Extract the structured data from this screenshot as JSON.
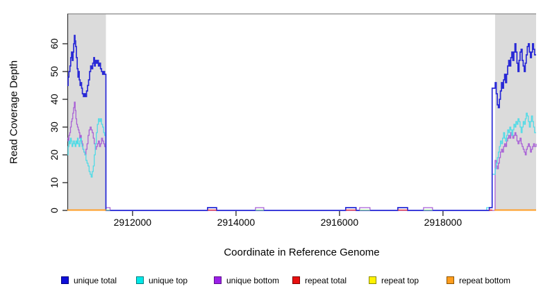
{
  "chart_data": {
    "type": "line",
    "title": "",
    "xlabel": "Coordinate in Reference Genome",
    "ylabel": "Read Coverage Depth",
    "xlim": [
      2910740,
      2919800
    ],
    "ylim": [
      0,
      70.75
    ],
    "xticks": [
      2912000,
      2914000,
      2916000,
      2918000
    ],
    "yticks": [
      0,
      10,
      20,
      30,
      40,
      50,
      60
    ],
    "grid": false,
    "legend_position": "bottom",
    "shade_color": "#dbdbdb",
    "top_border_color": "#9a9a9a",
    "shaded_regions": [
      {
        "x0": 2910740,
        "x1": 2911485
      },
      {
        "x0": 2919007,
        "x1": 2919800
      }
    ],
    "series": [
      {
        "name": "unique bottom",
        "color": "#a85fd6",
        "lw": 1.3,
        "points": [
          [
            2910740,
            26
          ],
          [
            2910755,
            25
          ],
          [
            2910770,
            27
          ],
          [
            2910785,
            28
          ],
          [
            2910800,
            30
          ],
          [
            2910815,
            32
          ],
          [
            2910830,
            33
          ],
          [
            2910845,
            35
          ],
          [
            2910860,
            37
          ],
          [
            2910875,
            39
          ],
          [
            2910890,
            36
          ],
          [
            2910905,
            33
          ],
          [
            2910920,
            31
          ],
          [
            2910935,
            30
          ],
          [
            2910950,
            29
          ],
          [
            2910965,
            28
          ],
          [
            2910980,
            26
          ],
          [
            2910995,
            27
          ],
          [
            2911010,
            25
          ],
          [
            2911025,
            24
          ],
          [
            2911040,
            22
          ],
          [
            2911060,
            21
          ],
          [
            2911080,
            20
          ],
          [
            2911100,
            22
          ],
          [
            2911120,
            24
          ],
          [
            2911140,
            27
          ],
          [
            2911160,
            29
          ],
          [
            2911180,
            30
          ],
          [
            2911200,
            29
          ],
          [
            2911220,
            28
          ],
          [
            2911240,
            26
          ],
          [
            2911260,
            24
          ],
          [
            2911280,
            22
          ],
          [
            2911300,
            23
          ],
          [
            2911320,
            24
          ],
          [
            2911340,
            25
          ],
          [
            2911360,
            23
          ],
          [
            2911380,
            24
          ],
          [
            2911400,
            26
          ],
          [
            2911420,
            25
          ],
          [
            2911440,
            24
          ],
          [
            2911460,
            23
          ],
          [
            2911485,
            1
          ],
          [
            2911565,
            0
          ],
          [
            2914376,
            1
          ],
          [
            2914537,
            0
          ],
          [
            2916389,
            1
          ],
          [
            2916590,
            0
          ],
          [
            2917624,
            1
          ],
          [
            2917798,
            0
          ],
          [
            2919007,
            18
          ],
          [
            2919030,
            16
          ],
          [
            2919050,
            15
          ],
          [
            2919070,
            17
          ],
          [
            2919090,
            19
          ],
          [
            2919110,
            21
          ],
          [
            2919130,
            22
          ],
          [
            2919150,
            21
          ],
          [
            2919170,
            23
          ],
          [
            2919190,
            24
          ],
          [
            2919210,
            23
          ],
          [
            2919230,
            25
          ],
          [
            2919250,
            26
          ],
          [
            2919270,
            27
          ],
          [
            2919290,
            26
          ],
          [
            2919310,
            28
          ],
          [
            2919330,
            27
          ],
          [
            2919350,
            26
          ],
          [
            2919370,
            27
          ],
          [
            2919390,
            28
          ],
          [
            2919410,
            27
          ],
          [
            2919430,
            25
          ],
          [
            2919450,
            24
          ],
          [
            2919470,
            25
          ],
          [
            2919490,
            26
          ],
          [
            2919510,
            24
          ],
          [
            2919530,
            23
          ],
          [
            2919550,
            22
          ],
          [
            2919570,
            21
          ],
          [
            2919590,
            20
          ],
          [
            2919610,
            22
          ],
          [
            2919630,
            23
          ],
          [
            2919650,
            24
          ],
          [
            2919670,
            23
          ],
          [
            2919690,
            21
          ],
          [
            2919710,
            22
          ],
          [
            2919730,
            23
          ],
          [
            2919750,
            24
          ],
          [
            2919770,
            23
          ],
          [
            2919800,
            24
          ]
        ]
      },
      {
        "name": "unique top",
        "color": "#4fdbe6",
        "lw": 1.3,
        "points": [
          [
            2910740,
            20
          ],
          [
            2910755,
            23
          ],
          [
            2910770,
            25
          ],
          [
            2910785,
            24
          ],
          [
            2910800,
            26
          ],
          [
            2910815,
            25
          ],
          [
            2910830,
            23
          ],
          [
            2910845,
            24
          ],
          [
            2910860,
            25
          ],
          [
            2910875,
            24
          ],
          [
            2910890,
            23
          ],
          [
            2910905,
            25
          ],
          [
            2910920,
            24
          ],
          [
            2910935,
            26
          ],
          [
            2910950,
            24
          ],
          [
            2910965,
            23
          ],
          [
            2910980,
            25
          ],
          [
            2910995,
            26
          ],
          [
            2911010,
            24
          ],
          [
            2911025,
            23
          ],
          [
            2911040,
            22
          ],
          [
            2911060,
            21
          ],
          [
            2911080,
            20
          ],
          [
            2911100,
            18
          ],
          [
            2911120,
            17
          ],
          [
            2911140,
            16
          ],
          [
            2911160,
            14
          ],
          [
            2911180,
            13
          ],
          [
            2911200,
            12
          ],
          [
            2911220,
            14
          ],
          [
            2911240,
            16
          ],
          [
            2911260,
            20
          ],
          [
            2911280,
            24
          ],
          [
            2911300,
            28
          ],
          [
            2911320,
            31
          ],
          [
            2911340,
            33
          ],
          [
            2911360,
            32
          ],
          [
            2911380,
            33
          ],
          [
            2911400,
            31
          ],
          [
            2911420,
            30
          ],
          [
            2911440,
            28
          ],
          [
            2911460,
            27
          ],
          [
            2911485,
            0
          ],
          [
            2913450,
            1
          ],
          [
            2913625,
            0
          ],
          [
            2916120,
            1
          ],
          [
            2916320,
            0
          ],
          [
            2917127,
            1
          ],
          [
            2917315,
            0
          ],
          [
            2918845,
            1
          ],
          [
            2918950,
            13
          ],
          [
            2919010,
            15
          ],
          [
            2919030,
            17
          ],
          [
            2919050,
            19
          ],
          [
            2919070,
            21
          ],
          [
            2919090,
            23
          ],
          [
            2919110,
            25
          ],
          [
            2919130,
            24
          ],
          [
            2919150,
            26
          ],
          [
            2919170,
            28
          ],
          [
            2919190,
            26
          ],
          [
            2919210,
            25
          ],
          [
            2919230,
            27
          ],
          [
            2919250,
            29
          ],
          [
            2919270,
            28
          ],
          [
            2919290,
            30
          ],
          [
            2919310,
            29
          ],
          [
            2919330,
            27
          ],
          [
            2919350,
            29
          ],
          [
            2919370,
            31
          ],
          [
            2919390,
            30
          ],
          [
            2919410,
            32
          ],
          [
            2919430,
            31
          ],
          [
            2919450,
            33
          ],
          [
            2919470,
            32
          ],
          [
            2919490,
            30
          ],
          [
            2919510,
            28
          ],
          [
            2919530,
            30
          ],
          [
            2919550,
            32
          ],
          [
            2919570,
            31
          ],
          [
            2919590,
            33
          ],
          [
            2919610,
            35
          ],
          [
            2919630,
            34
          ],
          [
            2919650,
            32
          ],
          [
            2919670,
            30
          ],
          [
            2919690,
            32
          ],
          [
            2919710,
            34
          ],
          [
            2919730,
            32
          ],
          [
            2919750,
            30
          ],
          [
            2919770,
            28
          ],
          [
            2919800,
            28
          ]
        ]
      },
      {
        "name": "unique total",
        "color": "#2929d6",
        "lw": 1.7,
        "points": [
          [
            2910740,
            45
          ],
          [
            2910755,
            48
          ],
          [
            2910770,
            50
          ],
          [
            2910790,
            52
          ],
          [
            2910805,
            55
          ],
          [
            2910820,
            57
          ],
          [
            2910835,
            54
          ],
          [
            2910850,
            57
          ],
          [
            2910862,
            60
          ],
          [
            2910875,
            63
          ],
          [
            2910888,
            61
          ],
          [
            2910900,
            59
          ],
          [
            2910915,
            55
          ],
          [
            2910930,
            51
          ],
          [
            2910945,
            48
          ],
          [
            2910958,
            50
          ],
          [
            2910970,
            47
          ],
          [
            2910985,
            45
          ],
          [
            2911000,
            46
          ],
          [
            2911015,
            44
          ],
          [
            2911030,
            42
          ],
          [
            2911050,
            41
          ],
          [
            2911070,
            42
          ],
          [
            2911090,
            41
          ],
          [
            2911110,
            43
          ],
          [
            2911130,
            45
          ],
          [
            2911150,
            47
          ],
          [
            2911170,
            50
          ],
          [
            2911190,
            52
          ],
          [
            2911210,
            51
          ],
          [
            2911230,
            53
          ],
          [
            2911250,
            55
          ],
          [
            2911265,
            52
          ],
          [
            2911280,
            54
          ],
          [
            2911300,
            53
          ],
          [
            2911320,
            54
          ],
          [
            2911340,
            52
          ],
          [
            2911360,
            53
          ],
          [
            2911380,
            51
          ],
          [
            2911400,
            50
          ],
          [
            2911420,
            49
          ],
          [
            2911440,
            50
          ],
          [
            2911460,
            49
          ],
          [
            2911485,
            0
          ],
          [
            2913450,
            1
          ],
          [
            2913625,
            0
          ],
          [
            2916120,
            1
          ],
          [
            2916320,
            0
          ],
          [
            2917127,
            1
          ],
          [
            2917315,
            0
          ],
          [
            2918895,
            1
          ],
          [
            2918950,
            44
          ],
          [
            2919010,
            46
          ],
          [
            2919030,
            42
          ],
          [
            2919050,
            38
          ],
          [
            2919070,
            37
          ],
          [
            2919090,
            40
          ],
          [
            2919110,
            43
          ],
          [
            2919130,
            46
          ],
          [
            2919150,
            44
          ],
          [
            2919170,
            47
          ],
          [
            2919190,
            49
          ],
          [
            2919210,
            46
          ],
          [
            2919230,
            49
          ],
          [
            2919250,
            52
          ],
          [
            2919270,
            54
          ],
          [
            2919290,
            52
          ],
          [
            2919310,
            55
          ],
          [
            2919330,
            57
          ],
          [
            2919350,
            54
          ],
          [
            2919370,
            57
          ],
          [
            2919390,
            60
          ],
          [
            2919410,
            57
          ],
          [
            2919430,
            53
          ],
          [
            2919450,
            50
          ],
          [
            2919470,
            54
          ],
          [
            2919490,
            57
          ],
          [
            2919510,
            58
          ],
          [
            2919530,
            54
          ],
          [
            2919550,
            52
          ],
          [
            2919570,
            50
          ],
          [
            2919590,
            53
          ],
          [
            2919610,
            56
          ],
          [
            2919630,
            59
          ],
          [
            2919650,
            60
          ],
          [
            2919670,
            57
          ],
          [
            2919690,
            55
          ],
          [
            2919710,
            57
          ],
          [
            2919730,
            60
          ],
          [
            2919750,
            58
          ],
          [
            2919770,
            56
          ],
          [
            2919800,
            56
          ]
        ]
      },
      {
        "name": "repeat total",
        "color": "#e63232",
        "lw": 1.4,
        "value": 0,
        "zero_segments": [
          [
            2913450,
            2913625
          ],
          [
            2916120,
            2916320
          ],
          [
            2917127,
            2917315
          ],
          [
            2918890,
            2918955
          ]
        ]
      },
      {
        "name": "repeat top",
        "color": "#93e493",
        "lw": 1.4,
        "value": 0,
        "zero_segments": [
          [
            2911488,
            2911565
          ],
          [
            2914376,
            2914537
          ],
          [
            2916389,
            2916590
          ],
          [
            2917624,
            2917798
          ]
        ]
      },
      {
        "name": "repeat bottom",
        "color": "#ff9d26",
        "lw": 2.0,
        "value": 0,
        "zero_segments": [
          [
            2910740,
            2911487
          ],
          [
            2918993,
            2919800
          ]
        ]
      }
    ]
  },
  "legend": {
    "items": [
      {
        "label": "unique total",
        "fill": "#0f0fd9",
        "border": "#000080"
      },
      {
        "label": "unique top",
        "fill": "#00e8e8",
        "border": "#007d7d"
      },
      {
        "label": "unique bottom",
        "fill": "#9b1fe8",
        "border": "#5c0f8a"
      },
      {
        "label": "repeat total",
        "fill": "#e80f0f",
        "border": "#7d0000"
      },
      {
        "label": "repeat top",
        "fill": "#fff200",
        "border": "#8a8a00"
      },
      {
        "label": "repeat bottom",
        "fill": "#ff9d1e",
        "border": "#8a5200"
      }
    ]
  }
}
